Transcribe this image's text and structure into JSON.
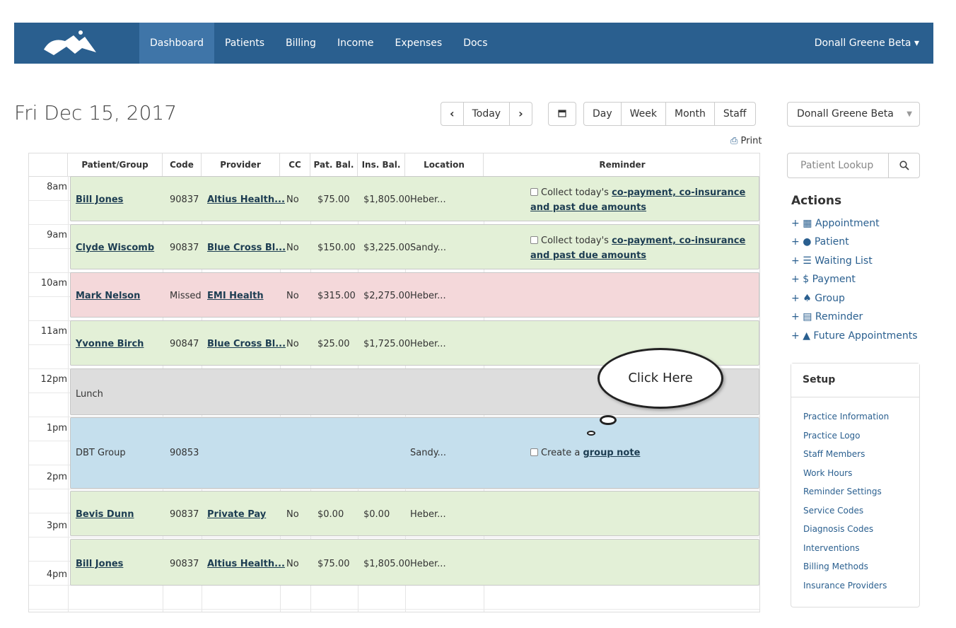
{
  "nav": {
    "links": [
      "Dashboard",
      "Patients",
      "Billing",
      "Income",
      "Expenses",
      "Docs"
    ],
    "user": "Donall Greene Beta ▾",
    "active_color": "#3f75a8",
    "bar_color": "#2a5f8f"
  },
  "date_title": "Fri Dec 15, 2017",
  "toolbar": {
    "prev": "‹",
    "today": "Today",
    "next": "›",
    "calendar_icon": "calendar-icon",
    "views": [
      "Day",
      "Week",
      "Month",
      "Staff"
    ],
    "print": "Print"
  },
  "calendar": {
    "headers": [
      "",
      "Patient/Group",
      "Code",
      "Provider",
      "CC",
      "Pat. Bal.",
      "Ins. Bal.",
      "Location",
      "Reminder"
    ],
    "times": [
      "8am",
      "9am",
      "10am",
      "11am",
      "12pm",
      "1pm",
      "2pm",
      "3pm",
      "4pm"
    ],
    "appointments": [
      {
        "patient": "Bill Jones",
        "code": "90837",
        "provider": "Altius Health...",
        "cc": "No",
        "pat_bal": "$75.00",
        "ins_bal": "$1,805.00",
        "location": "Heber...",
        "reminder_pre": "Collect today's ",
        "reminder_link": "co-payment, co-insurance and past due amounts",
        "badge": "1",
        "color": "#e3f0d7"
      },
      {
        "patient": "Clyde Wiscomb",
        "code": "90837",
        "provider": "Blue Cross Bl...",
        "cc": "No",
        "pat_bal": "$150.00",
        "ins_bal": "$3,225.00",
        "location": "Sandy...",
        "reminder_pre": "Collect today's ",
        "reminder_link": "co-payment, co-insurance and past due amounts",
        "badge": "1",
        "color": "#e3f0d7"
      },
      {
        "patient": "Mark Nelson",
        "code": "Missed",
        "provider": "EMI Health",
        "cc": "No",
        "pat_bal": "$315.00",
        "ins_bal": "$2,275.00",
        "location": "Heber...",
        "color": "#f4d8da"
      },
      {
        "patient": "Yvonne Birch",
        "code": "90847",
        "provider": "Blue Cross Bl...",
        "cc": "No",
        "pat_bal": "$25.00",
        "ins_bal": "$1,725.00",
        "location": "Heber...",
        "color": "#e3f0d7"
      },
      {
        "patient": "Lunch",
        "color": "#dddddd"
      },
      {
        "patient": "DBT Group",
        "code": "90853",
        "location": "Sandy...",
        "reminder_pre": "Create a ",
        "reminder_link": "group note",
        "badge": "1",
        "color": "#c5dfed"
      },
      {
        "patient": "Bevis Dunn",
        "code": "90837",
        "provider": "Private Pay",
        "cc": "No",
        "pat_bal": "$0.00",
        "ins_bal": "$0.00",
        "location": "Heber...",
        "color": "#e3f0d7"
      },
      {
        "patient": "Bill Jones",
        "code": "90837",
        "provider": "Altius Health...",
        "cc": "No",
        "pat_bal": "$75.00",
        "ins_bal": "$1,805.00",
        "location": "Heber...",
        "color": "#e3f0d7"
      }
    ]
  },
  "callout": "Click Here",
  "sidebar": {
    "staff_select": "Donall Greene Beta",
    "lookup_placeholder": "Patient Lookup",
    "actions_title": "Actions",
    "actions": [
      {
        "icon": "calendar-icon",
        "label": "Appointment"
      },
      {
        "icon": "user-icon",
        "label": "Patient"
      },
      {
        "icon": "list-icon",
        "label": "Waiting List"
      },
      {
        "icon": "dollar-icon",
        "label": "Payment"
      },
      {
        "icon": "tree-icon",
        "label": "Group"
      },
      {
        "icon": "reminder-icon",
        "label": "Reminder"
      },
      {
        "icon": "road-icon",
        "label": "Future Appointments"
      }
    ],
    "setup_title": "Setup",
    "setup_items": [
      "Practice Information",
      "Practice Logo",
      "Staff Members",
      "Work Hours",
      "Reminder Settings",
      "Service Codes",
      "Diagnosis Codes",
      "Interventions",
      "Billing Methods",
      "Insurance Providers"
    ]
  }
}
